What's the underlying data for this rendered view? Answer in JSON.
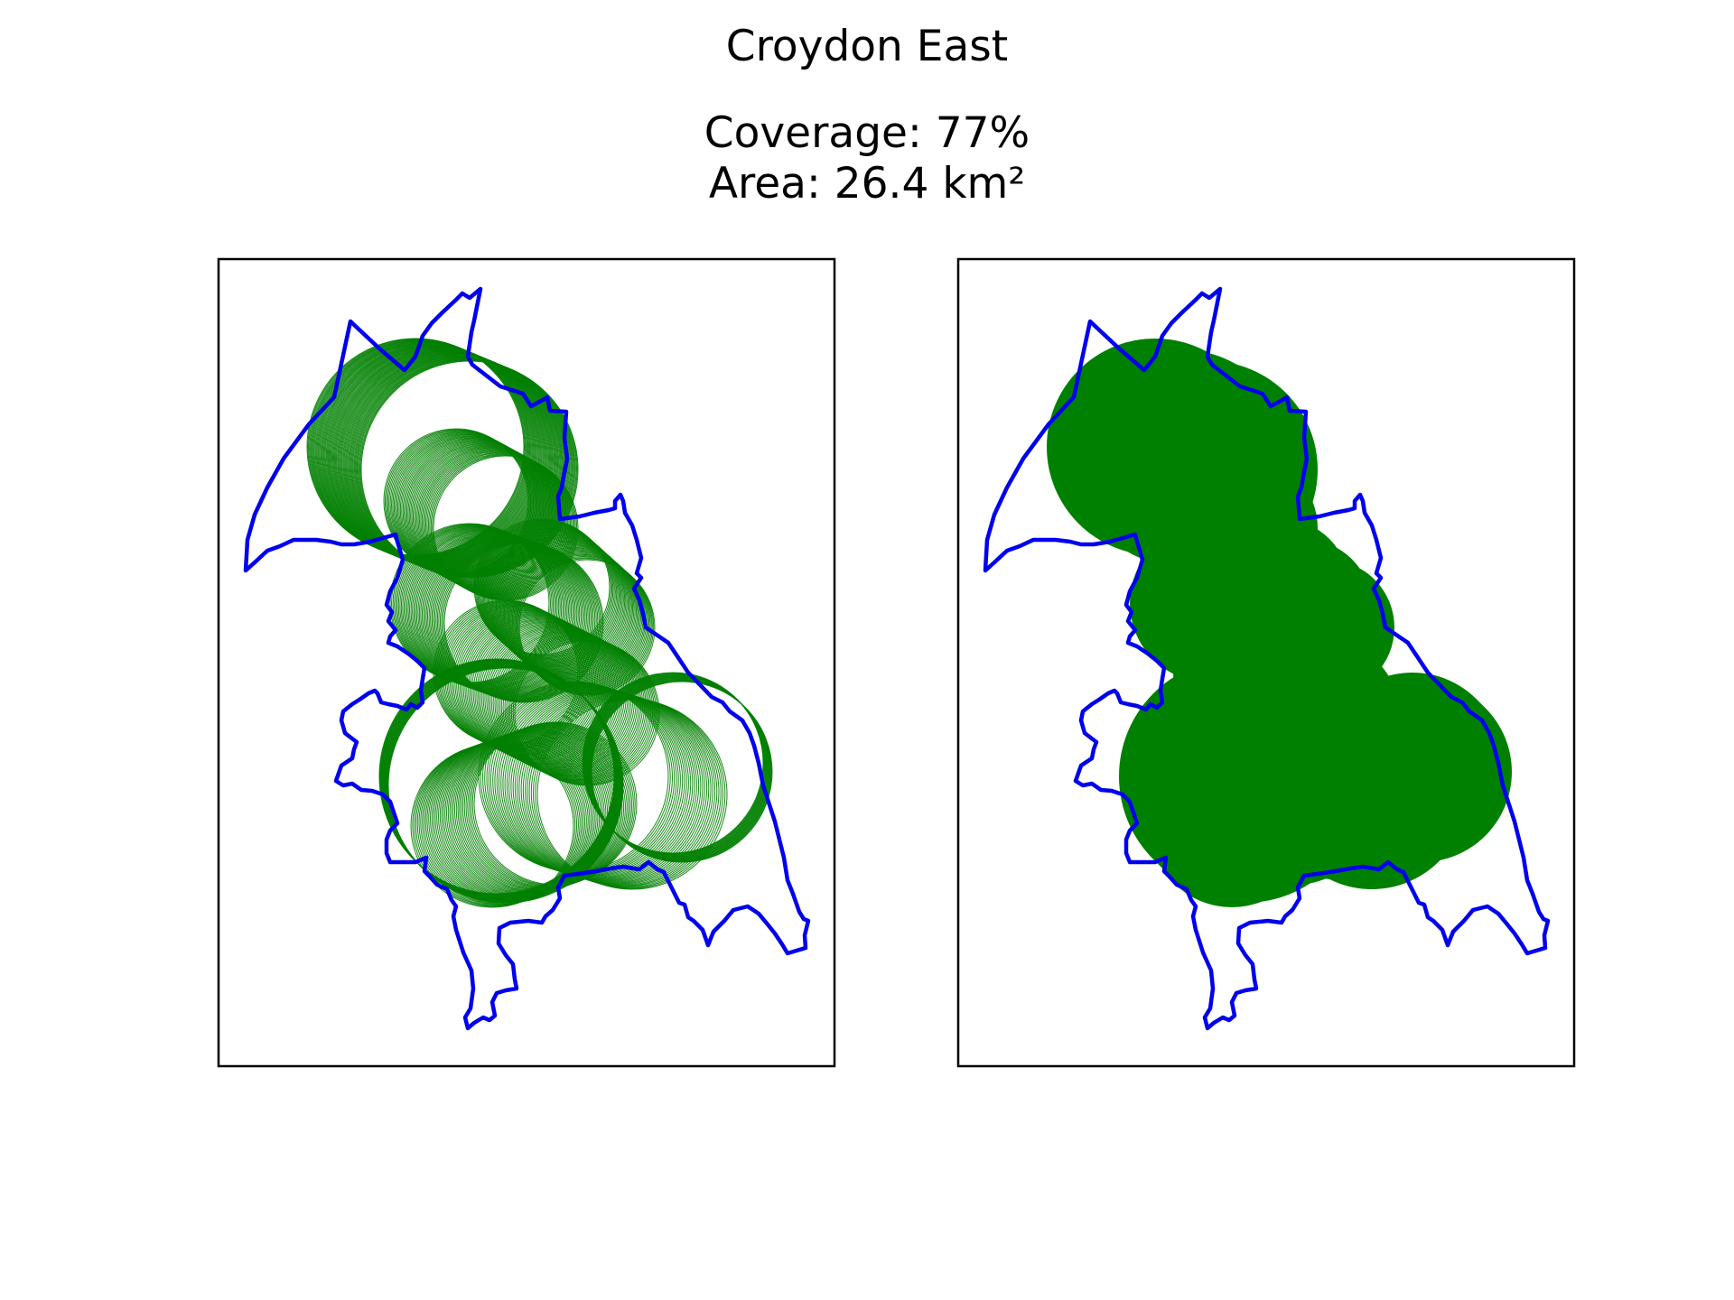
{
  "title": "Croydon East",
  "coverage_label": "Coverage: 77%",
  "area_label": "Area: 26.4 km²",
  "colors": {
    "boundary": "#0000ee",
    "coverage": "#008000",
    "frame": "#000000"
  },
  "panels": [
    {
      "style": "outline-circles"
    },
    {
      "style": "filled-circles"
    }
  ]
}
